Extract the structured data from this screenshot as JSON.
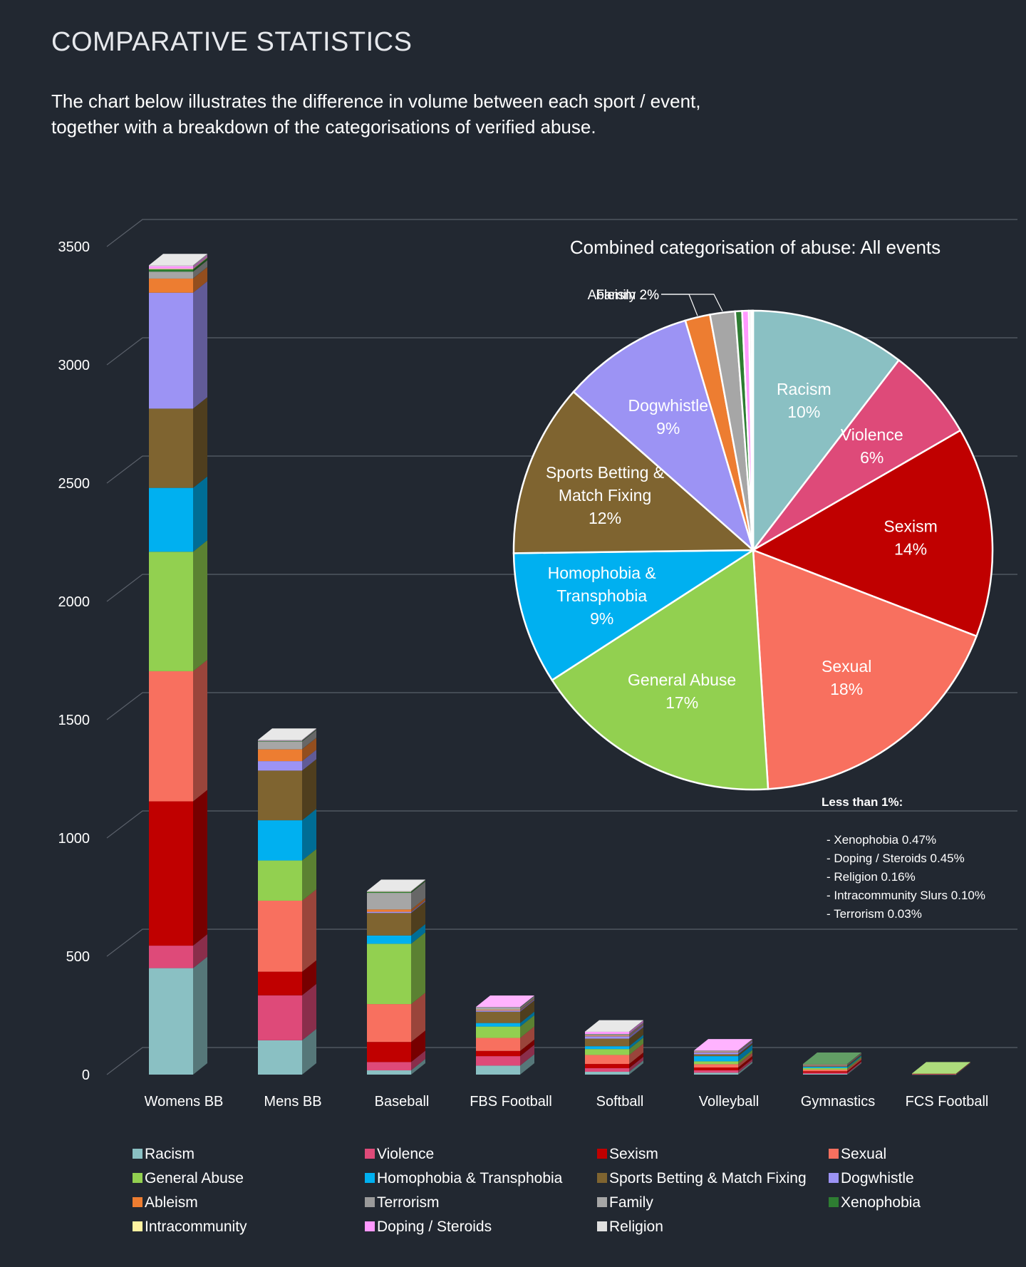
{
  "header": {
    "title": "COMPARATIVE STATISTICS",
    "intro_line1": "The chart below illustrates the difference in volume between each sport / event,",
    "intro_line2": "together with a breakdown of the categorisations of verified abuse."
  },
  "colors": {
    "background": "#222831",
    "gridline": "#5a606a",
    "Racism": "#8ac0c3",
    "Violence": "#de4a79",
    "Sexism": "#c00000",
    "Sexual": "#f8705f",
    "General Abuse": "#92d050",
    "Homophobia & Transphobia": "#00b0f0",
    "Sports Betting & Match Fixing": "#7f6430",
    "Dogwhistle": "#9c93f4",
    "Ableism": "#ed7d31",
    "Terrorism": "#9a9a9a",
    "Family": "#a6a6a6",
    "Xenophobia": "#2e7d32",
    "Intracommunity": "#fff2a0",
    "Doping / Steroids": "#ff99ff",
    "Religion": "#e0e0e0"
  },
  "chart_data": [
    {
      "type": "bar",
      "stacked": true,
      "three_d": true,
      "categories": [
        "Womens BB",
        "Mens BB",
        "Baseball",
        "FBS Football",
        "Softball",
        "Volleyball",
        "Gymnastics",
        "FCS Football"
      ],
      "ylim": [
        0,
        3500
      ],
      "yticks": [
        0,
        500,
        1000,
        1500,
        2000,
        2500,
        3000,
        3500
      ],
      "grid": true,
      "legend_position": "bottom",
      "series": [
        {
          "name": "Racism",
          "values": [
            450,
            145,
            18,
            38,
            12,
            8,
            3,
            1
          ]
        },
        {
          "name": "Violence",
          "values": [
            95,
            190,
            35,
            40,
            15,
            10,
            5,
            1
          ]
        },
        {
          "name": "Sexism",
          "values": [
            610,
            100,
            85,
            22,
            18,
            12,
            6,
            1
          ]
        },
        {
          "name": "Sexual",
          "values": [
            550,
            300,
            160,
            55,
            38,
            14,
            7,
            1
          ]
        },
        {
          "name": "General Abuse",
          "values": [
            505,
            170,
            255,
            48,
            25,
            12,
            7,
            1
          ]
        },
        {
          "name": "Homophobia & Transphobia",
          "values": [
            270,
            170,
            35,
            15,
            12,
            22,
            5,
            0
          ]
        },
        {
          "name": "Sports Betting & Match Fixing",
          "values": [
            335,
            210,
            95,
            48,
            32,
            8,
            5,
            0
          ]
        },
        {
          "name": "Dogwhistle",
          "values": [
            490,
            40,
            5,
            5,
            10,
            8,
            2,
            0
          ]
        },
        {
          "name": "Ableism",
          "values": [
            60,
            50,
            10,
            3,
            3,
            2,
            1,
            0
          ]
        },
        {
          "name": "Terrorism",
          "values": [
            1,
            1,
            0,
            0,
            0,
            0,
            0,
            0
          ]
        },
        {
          "name": "Family",
          "values": [
            28,
            32,
            70,
            10,
            5,
            4,
            3,
            0
          ]
        },
        {
          "name": "Xenophobia",
          "values": [
            10,
            3,
            5,
            1,
            1,
            1,
            1,
            0
          ]
        },
        {
          "name": "Intracommunity",
          "values": [
            3,
            0,
            1,
            0,
            0,
            0,
            0,
            0
          ]
        },
        {
          "name": "Doping / Steroids",
          "values": [
            10,
            2,
            1,
            1,
            10,
            1,
            0,
            0
          ]
        },
        {
          "name": "Religion",
          "values": [
            4,
            2,
            1,
            0,
            1,
            0,
            0,
            0
          ]
        }
      ]
    },
    {
      "type": "pie",
      "title": "Combined categorisation of abuse: All events",
      "slices": [
        {
          "name": "Racism",
          "label": "Racism",
          "pct_label": "10%",
          "value": 10.5
        },
        {
          "name": "Violence",
          "label": "Violence",
          "pct_label": "6%",
          "value": 6.3
        },
        {
          "name": "Sexism",
          "label": "Sexism",
          "pct_label": "14%",
          "value": 14.3
        },
        {
          "name": "Sexual",
          "label": "Sexual",
          "pct_label": "18%",
          "value": 18.3
        },
        {
          "name": "General Abuse",
          "label": "General Abuse",
          "pct_label": "17%",
          "value": 17.0
        },
        {
          "name": "Homophobia & Transphobia",
          "label": [
            "Homophobia &",
            "Transphobia"
          ],
          "pct_label": "9%",
          "value": 9.0
        },
        {
          "name": "Sports Betting & Match Fixing",
          "label": [
            "Sports Betting &",
            "Match Fixing"
          ],
          "pct_label": "12%",
          "value": 11.8
        },
        {
          "name": "Dogwhistle",
          "label": "Dogwhistle",
          "pct_label": "9%",
          "value": 9.0
        },
        {
          "name": "Ableism",
          "label": "Ableism 2%",
          "pct_label": "",
          "value": 1.7
        },
        {
          "name": "Family",
          "label": "Family 2%",
          "pct_label": "",
          "value": 1.7
        },
        {
          "name": "Xenophobia",
          "label": "",
          "pct_label": "",
          "value": 0.47
        },
        {
          "name": "Doping / Steroids",
          "label": "",
          "pct_label": "",
          "value": 0.45
        },
        {
          "name": "Religion",
          "label": "",
          "pct_label": "",
          "value": 0.16
        },
        {
          "name": "Intracommunity",
          "label": "",
          "pct_label": "",
          "value": 0.1
        },
        {
          "name": "Terrorism",
          "label": "",
          "pct_label": "",
          "value": 0.03
        }
      ]
    }
  ],
  "pie_note": {
    "title": "Less than 1%:",
    "items": [
      "-  Xenophobia 0.47%",
      "-  Doping / Steroids 0.45%",
      "-  Religion 0.16%",
      "-  Intracommunity Slurs 0.10%",
      "-  Terrorism 0.03%"
    ]
  },
  "legend": [
    "Racism",
    "Violence",
    "Sexism",
    "Sexual",
    "General Abuse",
    "Homophobia & Transphobia",
    "Sports Betting & Match Fixing",
    "Dogwhistle",
    "Ableism",
    "Terrorism",
    "Family",
    "Xenophobia",
    "Intracommunity",
    "Doping / Steroids",
    "Religion"
  ]
}
